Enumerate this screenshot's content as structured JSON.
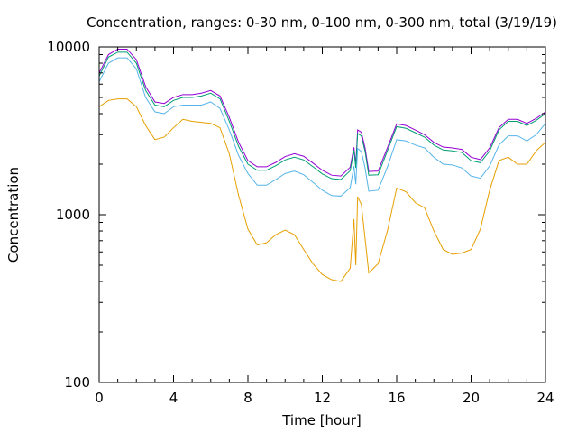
{
  "chart_data": {
    "type": "line",
    "title": "Concentration, ranges: 0-30 nm, 0-100 nm, 0-300 nm, total (3/19/19)",
    "xlabel": "Time [hour]",
    "ylabel": "Concentration",
    "xlim": [
      0,
      24
    ],
    "ylim": [
      100,
      10000
    ],
    "yscale": "log",
    "x_ticks": [
      0,
      4,
      8,
      12,
      16,
      20,
      24
    ],
    "x_tick_labels": [
      "0",
      "4",
      "8",
      "12",
      "16",
      "20",
      "24"
    ],
    "y_ticks": [
      100,
      1000,
      10000
    ],
    "y_tick_labels": [
      "100",
      "1000",
      "10000"
    ],
    "grid": false,
    "x": [
      0,
      0.5,
      1,
      1.5,
      2,
      2.5,
      3,
      3.5,
      4,
      4.5,
      5,
      5.5,
      6,
      6.5,
      7,
      7.5,
      8,
      8.5,
      9,
      9.5,
      10,
      10.5,
      11,
      11.5,
      12,
      12.5,
      13,
      13.5,
      13.7,
      13.8,
      13.9,
      14.1,
      14.3,
      14.5,
      15,
      15.5,
      16,
      16.5,
      17,
      17.5,
      18,
      18.5,
      19,
      19.5,
      20,
      20.5,
      21,
      21.5,
      22,
      22.5,
      23,
      23.5,
      24
    ],
    "series": [
      {
        "color": "#9400d3",
        "values": [
          7000,
          9000,
          9700,
          9700,
          8400,
          5800,
          4700,
          4600,
          5000,
          5200,
          5200,
          5300,
          5500,
          5100,
          3800,
          2700,
          2100,
          1930,
          1930,
          2050,
          2220,
          2310,
          2230,
          2030,
          1840,
          1720,
          1700,
          1920,
          2520,
          2000,
          3200,
          3100,
          2500,
          1810,
          1820,
          2500,
          3480,
          3400,
          3200,
          3000,
          2700,
          2530,
          2500,
          2450,
          2200,
          2130,
          2500,
          3300,
          3700,
          3700,
          3500,
          3750,
          4100
        ]
      },
      {
        "color": "#009e73",
        "values": [
          6700,
          8700,
          9300,
          9300,
          8000,
          5500,
          4500,
          4400,
          4800,
          5000,
          5000,
          5100,
          5300,
          4900,
          3600,
          2550,
          2000,
          1840,
          1840,
          1960,
          2120,
          2200,
          2120,
          1930,
          1750,
          1640,
          1620,
          1830,
          2420,
          1900,
          3050,
          2950,
          2380,
          1720,
          1730,
          2400,
          3350,
          3270,
          3080,
          2900,
          2600,
          2430,
          2400,
          2350,
          2100,
          2040,
          2400,
          3200,
          3600,
          3600,
          3400,
          3650,
          4000
        ]
      },
      {
        "color": "#56b4e9",
        "values": [
          6200,
          8000,
          8600,
          8600,
          7400,
          5000,
          4100,
          4000,
          4400,
          4500,
          4500,
          4500,
          4700,
          4300,
          3200,
          2250,
          1760,
          1500,
          1500,
          1620,
          1760,
          1820,
          1730,
          1560,
          1400,
          1300,
          1290,
          1450,
          1950,
          1520,
          2480,
          2380,
          1900,
          1380,
          1400,
          1920,
          2800,
          2750,
          2600,
          2500,
          2200,
          2000,
          1980,
          1900,
          1700,
          1650,
          1950,
          2600,
          2950,
          2950,
          2750,
          3000,
          3500
        ]
      },
      {
        "color": "#e69f00",
        "values": [
          4400,
          4800,
          4900,
          4900,
          4400,
          3400,
          2800,
          2900,
          3300,
          3700,
          3600,
          3550,
          3500,
          3300,
          2300,
          1300,
          820,
          660,
          680,
          760,
          810,
          760,
          620,
          510,
          440,
          410,
          400,
          480,
          940,
          500,
          1280,
          1150,
          720,
          450,
          510,
          800,
          1440,
          1370,
          1180,
          1100,
          800,
          620,
          580,
          590,
          620,
          820,
          1400,
          2100,
          2200,
          2000,
          2000,
          2400,
          2700
        ]
      }
    ]
  }
}
